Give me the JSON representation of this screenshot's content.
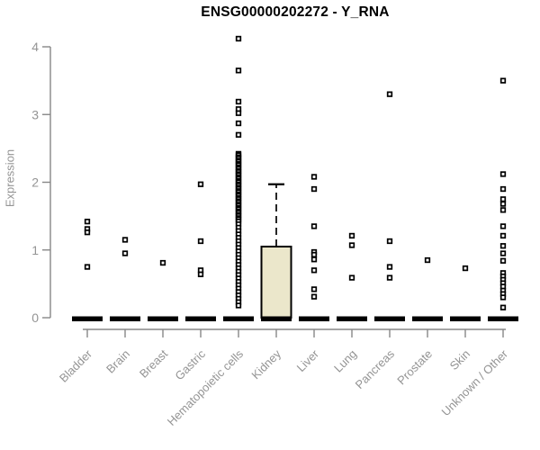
{
  "chart_data": {
    "type": "boxplot",
    "title": "ENSG00000202272 - Y_RNA",
    "ylabel": "Expression",
    "xlabel": "",
    "ylim": [
      0,
      4
    ],
    "yticks": [
      0,
      1,
      2,
      3,
      4
    ],
    "grid": false,
    "legend": null,
    "marker": "open-square",
    "categories": [
      "Bladder",
      "Brain",
      "Breast",
      "Gastric",
      "Hematopoietic cells",
      "Kidney",
      "Liver",
      "Lung",
      "Pancreas",
      "Prostate",
      "Skin",
      "Unknown / Other"
    ],
    "series": [
      {
        "name": "Bladder",
        "median": 0,
        "points": [
          1.42,
          1.31,
          1.26,
          0.75
        ]
      },
      {
        "name": "Brain",
        "median": 0,
        "points": [
          1.15,
          0.95
        ]
      },
      {
        "name": "Breast",
        "median": 0,
        "points": [
          0.81
        ]
      },
      {
        "name": "Gastric",
        "median": 0,
        "points": [
          1.97,
          1.13,
          0.7,
          0.64
        ]
      },
      {
        "name": "Hematopoietic cells",
        "median": 0,
        "points": [
          4.12,
          3.65,
          3.19,
          3.08,
          3.02,
          2.87,
          2.7,
          2.42,
          2.4,
          2.37,
          2.35,
          2.32,
          2.3,
          2.27,
          2.25,
          2.22,
          2.2,
          2.17,
          2.15,
          2.12,
          2.1,
          2.07,
          2.05,
          2.02,
          2.0,
          1.97,
          1.95,
          1.92,
          1.9,
          1.87,
          1.85,
          1.82,
          1.8,
          1.77,
          1.75,
          1.72,
          1.7,
          1.67,
          1.65,
          1.62,
          1.6,
          1.57,
          1.55,
          1.52,
          1.5,
          1.47,
          1.45,
          1.42,
          1.38,
          1.33,
          1.28,
          1.23,
          1.18,
          1.13,
          1.08,
          1.03,
          0.98,
          0.93,
          0.88,
          0.83,
          0.78,
          0.73,
          0.68,
          0.63,
          0.58,
          0.53,
          0.48,
          0.43,
          0.38,
          0.33,
          0.28,
          0.23,
          0.18
        ]
      },
      {
        "name": "Kidney",
        "median": 0,
        "points": [],
        "box": {
          "q1": 0,
          "median": 0,
          "q3": 1.05,
          "whisker_low": 0,
          "whisker_high": 1.97
        }
      },
      {
        "name": "Liver",
        "median": 0,
        "points": [
          2.08,
          1.9,
          1.35,
          0.97,
          0.93,
          0.86,
          0.7,
          0.42,
          0.31
        ]
      },
      {
        "name": "Lung",
        "median": 0,
        "points": [
          1.21,
          1.07,
          0.59
        ]
      },
      {
        "name": "Pancreas",
        "median": 0,
        "points": [
          3.3,
          1.13,
          0.75,
          0.59
        ]
      },
      {
        "name": "Prostate",
        "median": 0,
        "points": [
          0.85
        ]
      },
      {
        "name": "Skin",
        "median": 0,
        "points": [
          0.73
        ]
      },
      {
        "name": "Unknown / Other",
        "median": 0,
        "points": [
          3.5,
          2.12,
          1.9,
          1.75,
          1.68,
          1.59,
          1.35,
          1.21,
          1.06,
          0.95,
          0.84,
          0.66,
          0.61,
          0.56,
          0.51,
          0.46,
          0.4,
          0.35,
          0.3,
          0.15
        ]
      }
    ],
    "colors": {
      "title": "#000000",
      "axis": "#878787",
      "text": "#949494",
      "point": "#000000",
      "box_fill": "#ebe7cb",
      "box_border": "#000000",
      "median_bar": "#000000"
    }
  }
}
